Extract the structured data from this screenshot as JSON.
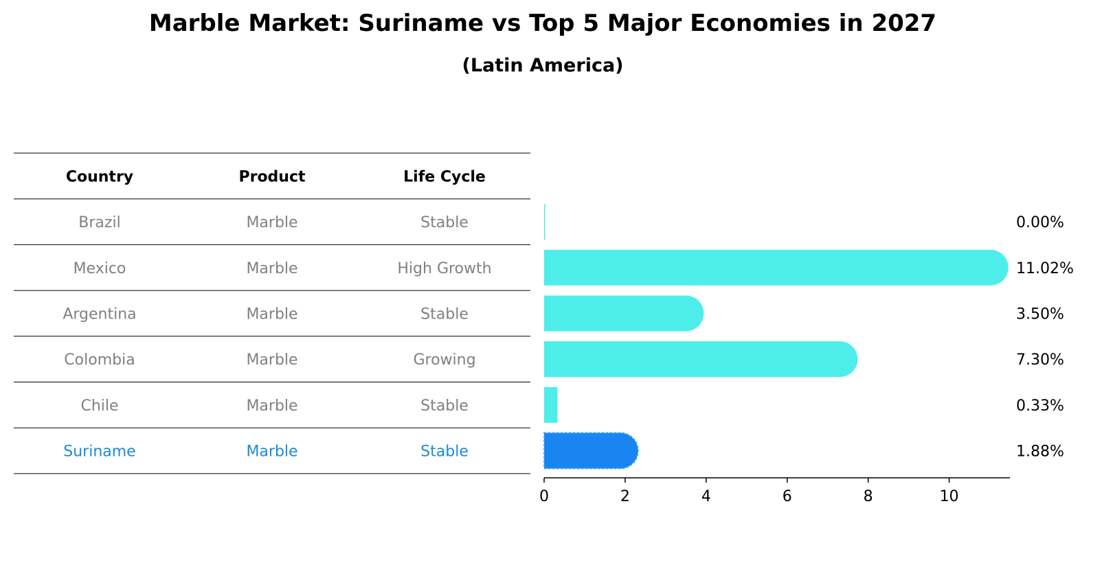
{
  "title": "Marble Market: Suriname vs Top 5 Major Economies in 2027",
  "subtitle": "(Latin America)",
  "colors": {
    "bar": "#4deeea",
    "highlight_bar": "#1a85f0",
    "highlight_text": "#1a8ad4",
    "row_text": "#808080"
  },
  "table": {
    "headers": [
      "Country",
      "Product",
      "Life Cycle"
    ],
    "rows": [
      {
        "country": "Brazil",
        "product": "Marble",
        "life_cycle": "Stable"
      },
      {
        "country": "Mexico",
        "product": "Marble",
        "life_cycle": "High Growth"
      },
      {
        "country": "Argentina",
        "product": "Marble",
        "life_cycle": "Stable"
      },
      {
        "country": "Colombia",
        "product": "Marble",
        "life_cycle": "Growing"
      },
      {
        "country": "Chile",
        "product": "Marble",
        "life_cycle": "Stable"
      },
      {
        "country": "Suriname",
        "product": "Marble",
        "life_cycle": "Stable"
      }
    ],
    "highlight_row": "Suriname"
  },
  "chart_data": {
    "type": "bar",
    "orientation": "horizontal",
    "categories": [
      "Brazil",
      "Mexico",
      "Argentina",
      "Colombia",
      "Chile",
      "Suriname"
    ],
    "values": [
      0.0,
      11.02,
      3.5,
      7.3,
      0.33,
      1.88
    ],
    "value_labels": [
      "0.00%",
      "11.02%",
      "3.50%",
      "7.30%",
      "0.33%",
      "1.88%"
    ],
    "xlim": [
      0,
      11.5
    ],
    "xticks": [
      0,
      2,
      4,
      6,
      8,
      10
    ],
    "grid": false,
    "highlight": "Suriname"
  }
}
